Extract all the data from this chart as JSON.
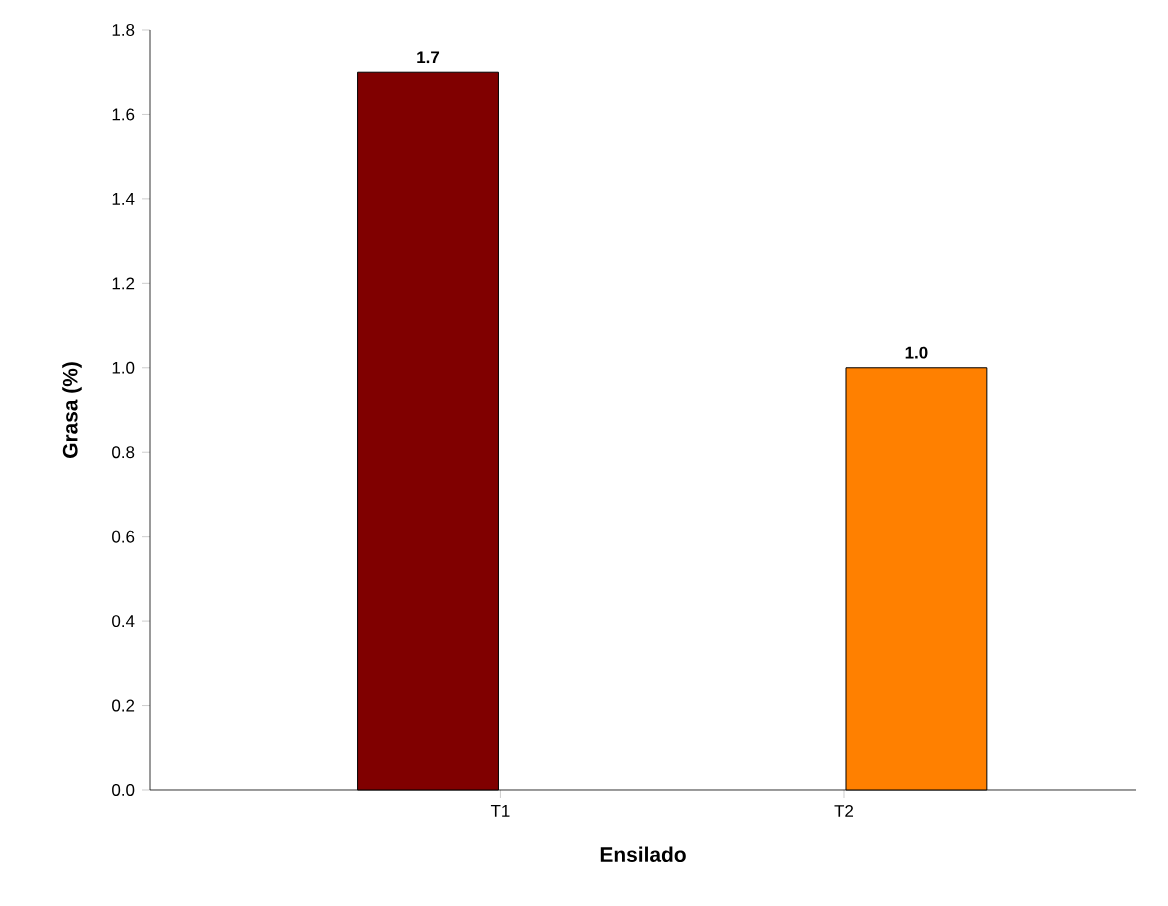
{
  "chart_data": {
    "type": "bar",
    "xlabel": "Ensilado",
    "ylabel": "Grasa (%)",
    "categories": [
      "T1",
      "T2"
    ],
    "values": [
      1.7,
      1.0
    ],
    "colors": [
      "#800000",
      "#ff8000"
    ],
    "value_labels": [
      "1.7",
      "1.0"
    ],
    "ylim": [
      0,
      1.8
    ],
    "yticks": [
      {
        "value": 0,
        "label": "0.0"
      },
      {
        "value": 0.2,
        "label": "0.2"
      },
      {
        "value": 0.4,
        "label": "0.4"
      },
      {
        "value": 0.6,
        "label": "0.6"
      },
      {
        "value": 0.8,
        "label": "0.8"
      },
      {
        "value": 1.0,
        "label": "1.0"
      },
      {
        "value": 1.2,
        "label": "1.2"
      },
      {
        "value": 1.4,
        "label": "1.4"
      },
      {
        "value": 1.6,
        "label": "1.6"
      },
      {
        "value": 1.8,
        "label": "1.8"
      }
    ]
  }
}
